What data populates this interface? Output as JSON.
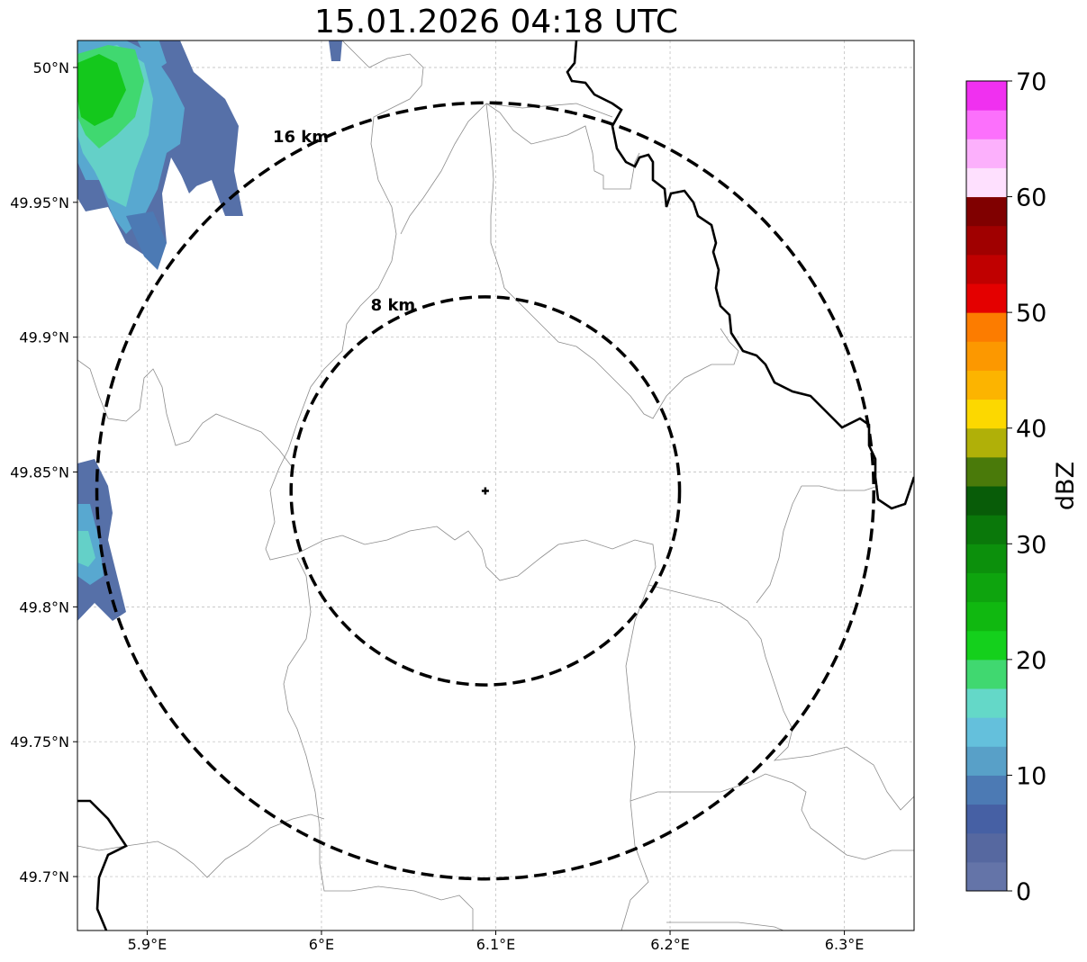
{
  "title": "15.01.2026 04:18 UTC",
  "map": {
    "lon_range": [
      5.86,
      6.34
    ],
    "lat_range": [
      49.68,
      50.01
    ],
    "lon_ticks": [
      {
        "value": 5.9,
        "label": "5.9°E"
      },
      {
        "value": 6.0,
        "label": "6°E"
      },
      {
        "value": 6.1,
        "label": "6.1°E"
      },
      {
        "value": 6.2,
        "label": "6.2°E"
      },
      {
        "value": 6.3,
        "label": "6.3°E"
      }
    ],
    "lat_ticks": [
      {
        "value": 50.0,
        "label": "50°N"
      },
      {
        "value": 49.95,
        "label": "49.95°N"
      },
      {
        "value": 49.9,
        "label": "49.9°N"
      },
      {
        "value": 49.85,
        "label": "49.85°N"
      },
      {
        "value": 49.8,
        "label": "49.8°N"
      },
      {
        "value": 49.75,
        "label": "49.75°N"
      },
      {
        "value": 49.7,
        "label": "49.7°N"
      }
    ],
    "gridlines": true,
    "radar_center": {
      "lon": 6.094,
      "lat": 49.843
    },
    "range_rings": [
      {
        "radius_km": 8,
        "label": "8 km"
      },
      {
        "radius_km": 16,
        "label": "16 km"
      }
    ]
  },
  "colorbar": {
    "label": "dBZ",
    "min": 0,
    "max": 70,
    "step": 2.5,
    "tick_labels": [
      "0",
      "10",
      "20",
      "30",
      "40",
      "50",
      "60",
      "70"
    ],
    "colors": [
      "#6474a8",
      "#5668a0",
      "#4660a4",
      "#4c7ab4",
      "#58a0c8",
      "#64c0dc",
      "#64d8c8",
      "#40d870",
      "#14d01c",
      "#10b810",
      "#0ea40e",
      "#0c900c",
      "#0a780a",
      "#085c08",
      "#4a7a0a",
      "#b0b008",
      "#fcd800",
      "#fcb400",
      "#fc9800",
      "#fc7c00",
      "#e40000",
      "#c00000",
      "#a00000",
      "#800000",
      "#fee0fe",
      "#fcb0fc",
      "#fc70fc",
      "#f030f0"
    ]
  },
  "echo_colors": {
    "weak": "#5670a8",
    "light": "#58a8d0",
    "cyan": "#64d0c8",
    "green_light": "#40d870",
    "green": "#14c81c"
  }
}
